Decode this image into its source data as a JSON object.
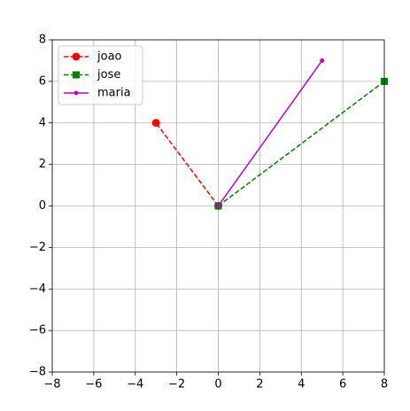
{
  "chart_data": {
    "type": "line",
    "series": [
      {
        "name": "joao",
        "color": "#ff0000",
        "linestyle": "dashed",
        "marker": "circle",
        "x": [
          0,
          -3
        ],
        "values": [
          0,
          4
        ]
      },
      {
        "name": "jose",
        "color": "#008000",
        "linestyle": "dashed",
        "marker": "square",
        "x": [
          0,
          8
        ],
        "values": [
          0,
          6
        ]
      },
      {
        "name": "maria",
        "color": "#bf00bf",
        "linestyle": "solid",
        "marker": "point",
        "x": [
          0,
          5
        ],
        "values": [
          0,
          7
        ]
      }
    ],
    "xlim": [
      -8,
      8
    ],
    "ylim": [
      -8,
      8
    ],
    "xticks": [
      {
        "value": -8,
        "label": "−8"
      },
      {
        "value": -6,
        "label": "−6"
      },
      {
        "value": -4,
        "label": "−4"
      },
      {
        "value": -2,
        "label": "−2"
      },
      0,
      2,
      4,
      6,
      8
    ],
    "yticks": [
      {
        "value": -8,
        "label": "−8"
      },
      {
        "value": -6,
        "label": "−6"
      },
      {
        "value": -4,
        "label": "−4"
      },
      {
        "value": -2,
        "label": "−2"
      },
      0,
      2,
      4,
      6,
      8
    ],
    "grid": true,
    "legend": "upper left"
  }
}
